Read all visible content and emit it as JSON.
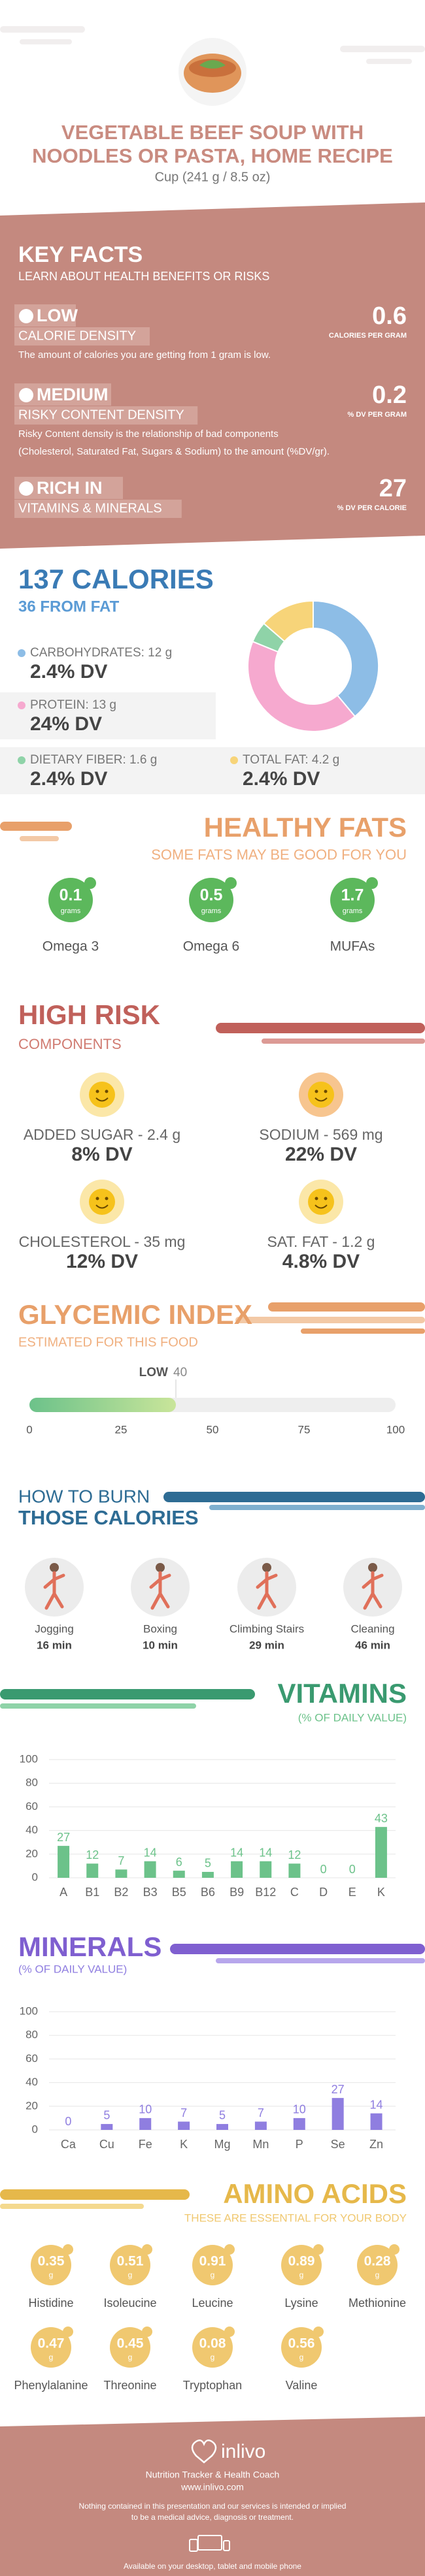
{
  "header": {
    "title_lines": [
      "VEGETABLE BEEF SOUP WITH",
      "NOODLES OR PASTA, HOME RECIPE"
    ],
    "serving": "Cup (241 g / 8.5 oz)"
  },
  "key_facts": {
    "title": "KEY FACTS",
    "subtitle": "LEARN ABOUT HEALTH BENEFITS OR RISKS",
    "items": [
      {
        "level": "LOW",
        "name": "CALORIE DENSITY",
        "value": 0.6,
        "unit": "CALORIES PER GRAM",
        "description": [
          "The amount of calories you are getting from 1 gram is low."
        ]
      },
      {
        "level": "MEDIUM",
        "name": "RISKY CONTENT DENSITY",
        "value": 0.2,
        "unit": "% DV PER GRAM",
        "description": [
          "Risky Content density is the relationship of bad components",
          "(Cholesterol, Saturated Fat, Sugars & Sodium) to the amount (%DV/gr)."
        ]
      },
      {
        "level": "RICH IN",
        "name": "VITAMINS & MINERALS",
        "value": 27,
        "unit": "% DV PER CALORIE",
        "description": []
      }
    ]
  },
  "calories": {
    "title": "137 CALORIES",
    "from_fat": "36 FROM FAT",
    "nutrients": [
      {
        "label": "CARBOHYDRATES: 12 g",
        "dv": "2.4% DV",
        "grams": 12,
        "color": "#8dbde6"
      },
      {
        "label": "PROTEIN: 13 g",
        "dv": "24% DV",
        "grams": 13,
        "color": "#f6a9cf"
      },
      {
        "label": "DIETARY FIBER: 1.6 g",
        "dv": "2.4% DV",
        "grams": 1.6,
        "color": "#8fd3a8"
      },
      {
        "label": "TOTAL FAT: 4.2 g",
        "dv": "2.4% DV",
        "grams": 4.2,
        "color": "#f7d479"
      }
    ]
  },
  "healthy_fats": {
    "title": "HEALTHY FATS",
    "subtitle": "SOME FATS MAY BE GOOD FOR YOU",
    "items": [
      {
        "value": 0.1,
        "unit": "grams",
        "name": "Omega 3"
      },
      {
        "value": 0.5,
        "unit": "grams",
        "name": "Omega 6"
      },
      {
        "value": 1.7,
        "unit": "grams",
        "name": "MUFAs"
      }
    ]
  },
  "high_risk": {
    "title": "HIGH RISK",
    "subtitle": "COMPONENTS",
    "items": [
      {
        "label": "ADDED SUGAR - 2.4 g",
        "dv": "8% DV",
        "color": "#fbe7a8"
      },
      {
        "label": "SODIUM - 569 mg",
        "dv": "22% DV",
        "color": "#f7c58f"
      },
      {
        "label": "CHOLESTEROL - 35 mg",
        "dv": "12% DV",
        "color": "#fbe7a8"
      },
      {
        "label": "SAT. FAT - 1.2 g",
        "dv": "4.8% DV",
        "color": "#fbe7a8"
      }
    ]
  },
  "glycemic": {
    "title": "GLYCEMIC INDEX",
    "subtitle": "ESTIMATED FOR THIS FOOD",
    "level": "LOW",
    "value": 40,
    "xlim": [
      0,
      100
    ],
    "xticks": [
      0,
      25,
      50,
      75,
      100
    ]
  },
  "burn": {
    "title_lines": [
      "HOW TO BURN",
      "THOSE CALORIES"
    ],
    "activities": [
      {
        "name": "Jogging",
        "minutes": "16 min"
      },
      {
        "name": "Boxing",
        "minutes": "10 min"
      },
      {
        "name": "Climbing Stairs",
        "minutes": "29 min"
      },
      {
        "name": "Cleaning",
        "minutes": "46 min"
      }
    ]
  },
  "chart_data": [
    {
      "type": "bar",
      "title": "VITAMINS",
      "subtitle": "(% OF DAILY VALUE)",
      "categories": [
        "A",
        "B1",
        "B2",
        "B3",
        "B5",
        "B6",
        "B9",
        "B12",
        "C",
        "D",
        "E",
        "K"
      ],
      "values": [
        27,
        12,
        7,
        14,
        6,
        5,
        14,
        14,
        12,
        0,
        0,
        43
      ],
      "color": "#6cc28a",
      "ylim": [
        0,
        100
      ],
      "yticks": [
        0,
        20,
        40,
        60,
        80,
        100
      ],
      "grid": true
    },
    {
      "type": "bar",
      "title": "MINERALS",
      "subtitle": "(% OF DAILY VALUE)",
      "categories": [
        "Ca",
        "Cu",
        "Fe",
        "K",
        "Mg",
        "Mn",
        "P",
        "Se",
        "Zn"
      ],
      "values": [
        0,
        5,
        10,
        7,
        5,
        7,
        10,
        27,
        14
      ],
      "color": "#8f7ee0",
      "ylim": [
        0,
        100
      ],
      "yticks": [
        0,
        20,
        40,
        60,
        80,
        100
      ],
      "grid": true
    }
  ],
  "amino_acids": {
    "title": "AMINO ACIDS",
    "subtitle": "THESE ARE ESSENTIAL FOR YOUR BODY",
    "items": [
      {
        "value": 0.35,
        "unit": "g",
        "name": "Histidine"
      },
      {
        "value": 0.51,
        "unit": "g",
        "name": "Isoleucine"
      },
      {
        "value": 0.91,
        "unit": "g",
        "name": "Leucine"
      },
      {
        "value": 0.89,
        "unit": "g",
        "name": "Lysine"
      },
      {
        "value": 0.28,
        "unit": "g",
        "name": "Methionine"
      },
      {
        "value": 0.47,
        "unit": "g",
        "name": "Phenylalanine"
      },
      {
        "value": 0.45,
        "unit": "g",
        "name": "Threonine"
      },
      {
        "value": 0.08,
        "unit": "g",
        "name": "Tryptophan"
      },
      {
        "value": 0.56,
        "unit": "g",
        "name": "Valine"
      }
    ]
  },
  "footer": {
    "brand": "inlivo",
    "tagline": "Nutrition Tracker & Health Coach",
    "url": "www.inlivo.com",
    "disclaimer": [
      "Nothing contained in this presentation and our services is intended or implied",
      "to be a medical advice, diagnosis or treatment."
    ],
    "available": "Available on your desktop, tablet and mobile phone"
  }
}
